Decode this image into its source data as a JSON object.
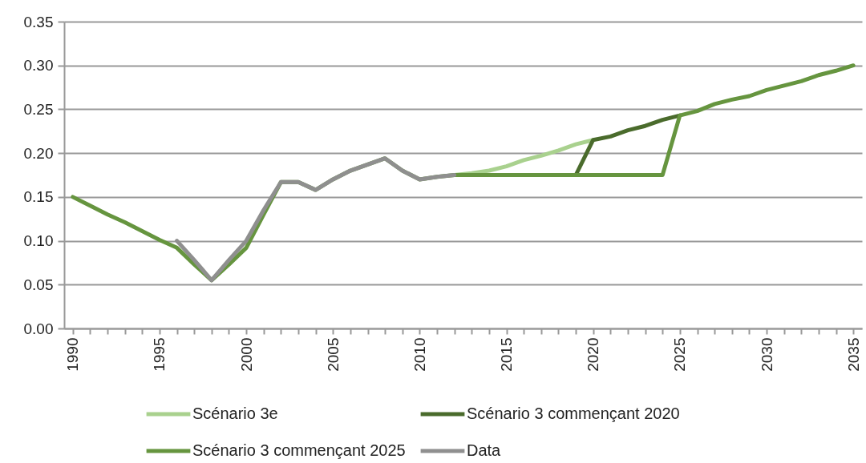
{
  "chart_data": {
    "type": "line",
    "categories": [
      "1990",
      null,
      null,
      null,
      null,
      "1995",
      null,
      null,
      null,
      null,
      "2000",
      null,
      null,
      null,
      null,
      "2005",
      null,
      null,
      null,
      null,
      "2010",
      null,
      null,
      null,
      null,
      "2015",
      null,
      null,
      null,
      null,
      "2020",
      null,
      null,
      null,
      null,
      "2025",
      null,
      null,
      null,
      null,
      "2030",
      null,
      null,
      null,
      null,
      "2035"
    ],
    "series": [
      {
        "name": "Scénario 3e",
        "color": "#a9d18e",
        "values": [
          null,
          null,
          null,
          null,
          null,
          null,
          null,
          null,
          null,
          null,
          null,
          null,
          null,
          null,
          null,
          null,
          null,
          null,
          null,
          null,
          null,
          null,
          0.175,
          0.177,
          0.18,
          0.185,
          0.192,
          0.197,
          0.203,
          0.21,
          0.215,
          null,
          null,
          null,
          null,
          null,
          null,
          null,
          null,
          null,
          null,
          null,
          null,
          null,
          null,
          null
        ]
      },
      {
        "name": "Scénario 3 commençant 2020",
        "color": "#4a6b2c",
        "values": [
          null,
          null,
          null,
          null,
          null,
          null,
          null,
          null,
          null,
          null,
          null,
          null,
          null,
          null,
          null,
          null,
          null,
          null,
          null,
          null,
          null,
          null,
          null,
          null,
          null,
          null,
          null,
          null,
          null,
          0.175,
          0.215,
          0.219,
          0.226,
          0.231,
          0.238,
          0.243,
          null,
          null,
          null,
          null,
          null,
          null,
          null,
          null,
          null,
          null
        ]
      },
      {
        "name": "Scénario 3 commençant 2025",
        "color": "#66953f",
        "values": [
          0.15,
          0.14,
          0.13,
          0.121,
          0.111,
          0.101,
          0.092,
          0.073,
          0.055,
          0.073,
          0.092,
          0.13,
          0.167,
          0.167,
          0.158,
          0.17,
          0.18,
          0.187,
          0.194,
          0.18,
          0.17,
          0.173,
          0.175,
          0.175,
          0.175,
          0.175,
          0.175,
          0.175,
          0.175,
          0.175,
          0.175,
          0.175,
          0.175,
          0.175,
          0.175,
          0.243,
          0.248,
          0.256,
          0.261,
          0.265,
          0.272,
          0.277,
          0.282,
          0.289,
          0.294,
          0.3
        ]
      },
      {
        "name": "Data",
        "color": "#8f8f8f",
        "values": [
          null,
          null,
          null,
          null,
          null,
          null,
          0.1,
          0.078,
          0.055,
          0.078,
          0.1,
          0.135,
          0.167,
          0.167,
          0.158,
          0.17,
          0.18,
          0.187,
          0.194,
          0.18,
          0.17,
          0.173,
          0.175,
          null,
          null,
          null,
          null,
          null,
          null,
          null,
          null,
          null,
          null,
          null,
          null,
          null,
          null,
          null,
          null,
          null,
          null,
          null,
          null,
          null,
          null,
          null
        ]
      }
    ],
    "ylim": [
      0,
      0.35
    ],
    "yticks": [
      {
        "value": 0,
        "label": "0.00"
      },
      {
        "value": 0.05,
        "label": "0.05"
      },
      {
        "value": 0.1,
        "label": "0.10"
      },
      {
        "value": 0.15,
        "label": "0.15"
      },
      {
        "value": 0.2,
        "label": "0.20"
      },
      {
        "value": 0.25,
        "label": "0.25"
      },
      {
        "value": 0.3,
        "label": "0.30"
      },
      {
        "value": 0.35,
        "label": "0.35"
      }
    ],
    "grid": "y",
    "legend": "bottom",
    "line_style": "solid",
    "marker": "none"
  }
}
